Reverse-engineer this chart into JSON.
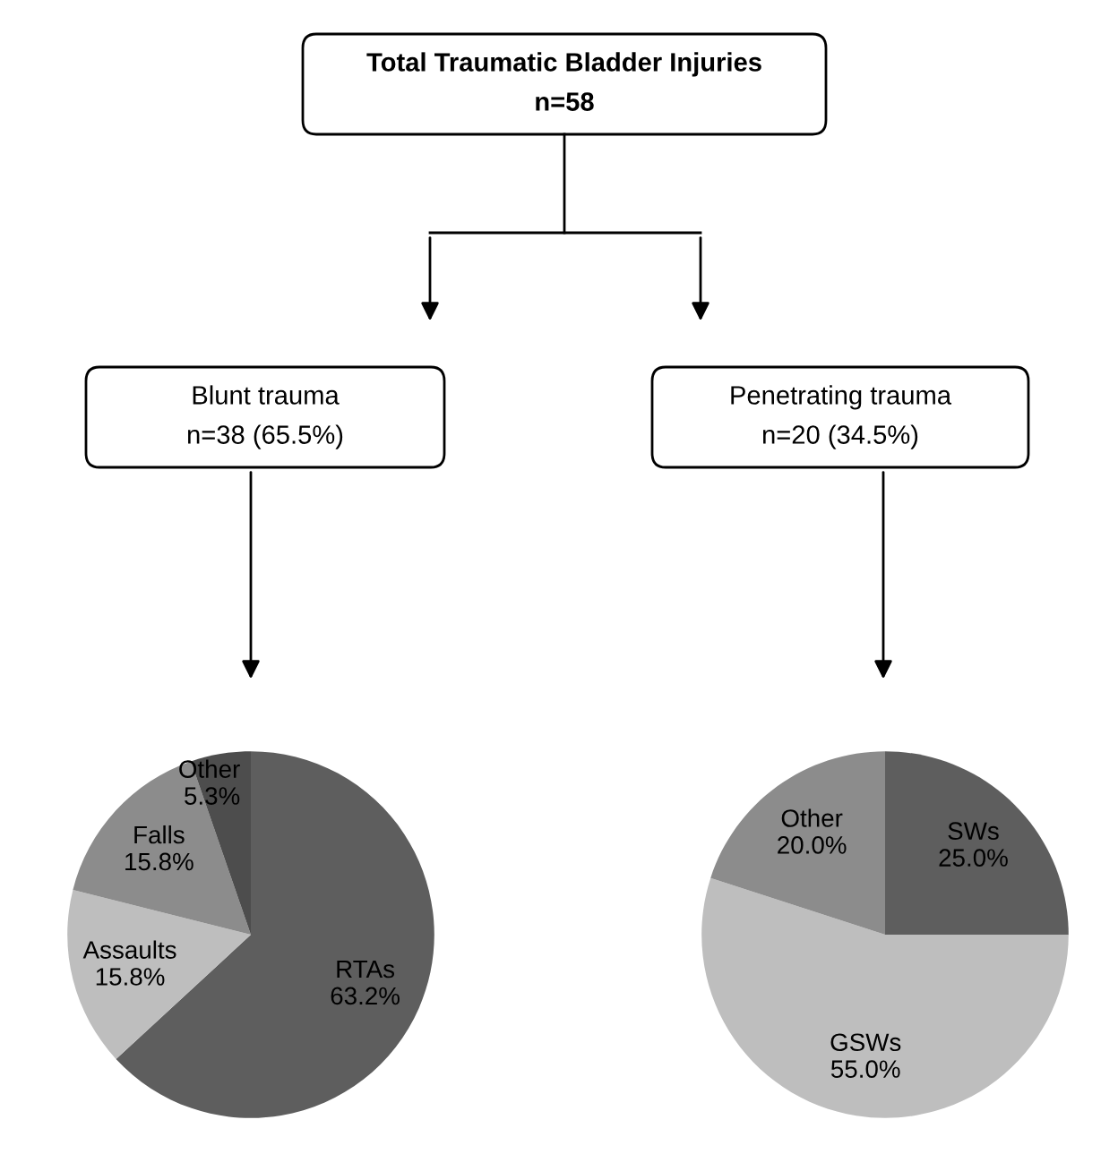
{
  "chart_data": [
    {
      "type": "other",
      "annotations": [
        "Total Traumatic Bladder Injuries\nn=58",
        "Blunt trauma\nn=38 (65.5%)",
        "Penetrating trauma\nn=20 (34.5%)"
      ]
    },
    {
      "type": "pie",
      "categories": [
        "RTAs",
        "Assaults",
        "Falls",
        "Other"
      ],
      "values": [
        63.2,
        15.8,
        15.8,
        5.3
      ],
      "colors": [
        "#5e5e5e",
        "#bebebe",
        "#8c8c8c",
        "#4d4d4d"
      ],
      "value_labels": [
        "63.2%",
        "15.8%",
        "15.8%",
        "5.3%"
      ]
    },
    {
      "type": "pie",
      "categories": [
        "SWs",
        "GSWs",
        "Other"
      ],
      "values": [
        25.0,
        55.0,
        20.0
      ],
      "colors": [
        "#5e5e5e",
        "#bebebe",
        "#8c8c8c"
      ],
      "value_labels": [
        "25.0%",
        "55.0%",
        "20.0%"
      ]
    }
  ]
}
